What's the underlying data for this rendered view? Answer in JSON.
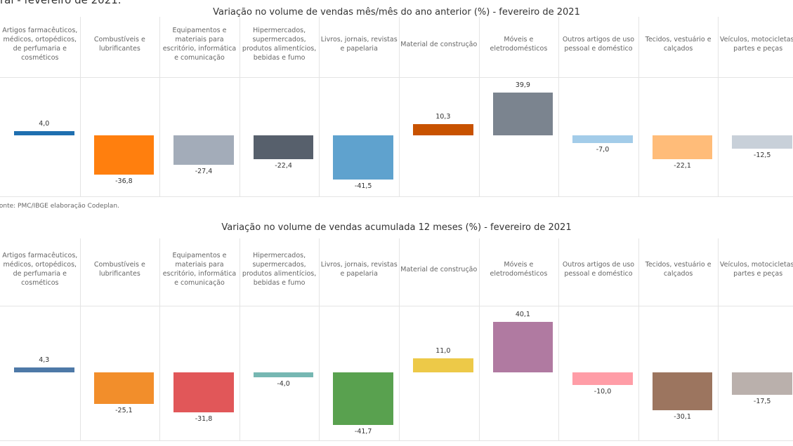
{
  "header": "ral - fevereiro de 2021.",
  "source": "Fonte: PMC/IBGE elaboração Codeplan.",
  "chart_data": [
    {
      "type": "bar",
      "title": "Variação no volume de vendas mês/mês do ano anterior (%) - fevereiro de 2021",
      "categories": [
        "Artigos farmacêuticos, médicos, ortopédicos, de perfumaria e cosméticos",
        "Combustíveis e lubrificantes",
        "Equipamentos e materiais para escritório, informática e comunicação",
        "Hipermercados, supermercados, produtos alimentícios, bebidas e fumo",
        "Livros, jornais, revistas e papelaria",
        "Material de construção",
        "Móveis e eletrodomésticos",
        "Outros artigos de uso pessoal e doméstico",
        "Tecidos, vestuário e calçados",
        "Veículos, motocicletas, partes e peças"
      ],
      "values": [
        4.0,
        -36.8,
        -27.4,
        -22.4,
        -41.5,
        10.3,
        39.9,
        -7.0,
        -22.1,
        -12.5
      ],
      "value_labels": [
        "4,0",
        "-36,8",
        "-27,4",
        "-22,4",
        "-41,5",
        "10,3",
        "39,9",
        "-7,0",
        "-22,1",
        "-12,5"
      ],
      "colors": [
        "#1f6fb0",
        "#ff7f0e",
        "#a3acb9",
        "#57606c",
        "#5fa2ce",
        "#c85200",
        "#7b848f",
        "#a3cce9",
        "#ffbc79",
        "#c8d0d9"
      ],
      "ylim": [
        -57,
        53
      ]
    },
    {
      "type": "bar",
      "title": "Variação no volume de vendas acumulada 12 meses (%) - fevereiro de 2021",
      "categories": [
        "Artigos farmacêuticos, médicos, ortopédicos, de perfumaria e cosméticos",
        "Combustíveis e lubrificantes",
        "Equipamentos e materiais para escritório, informática e comunicação",
        "Hipermercados, supermercados, produtos alimentícios, bebidas e fumo",
        "Livros, jornais, revistas e papelaria",
        "Material de construção",
        "Móveis e eletrodomésticos",
        "Outros artigos de uso pessoal e doméstico",
        "Tecidos, vestuário e calçados",
        "Veículos, motocicletas, partes e peças"
      ],
      "values": [
        4.3,
        -25.1,
        -31.8,
        -4.0,
        -41.7,
        11.0,
        40.1,
        -10.0,
        -30.1,
        -17.5
      ],
      "value_labels": [
        "4,3",
        "-25,1",
        "-31,8",
        "-4,0",
        "-41,7",
        "11,0",
        "40,1",
        "-10,0",
        "-30,1",
        "-17,5"
      ],
      "colors": [
        "#4e79a7",
        "#f28e2b",
        "#e15759",
        "#76b7b2",
        "#59a14f",
        "#edc948",
        "#b07aa1",
        "#ff9da7",
        "#9c755f",
        "#bab0ac"
      ],
      "ylim": [
        -54,
        52
      ]
    }
  ]
}
